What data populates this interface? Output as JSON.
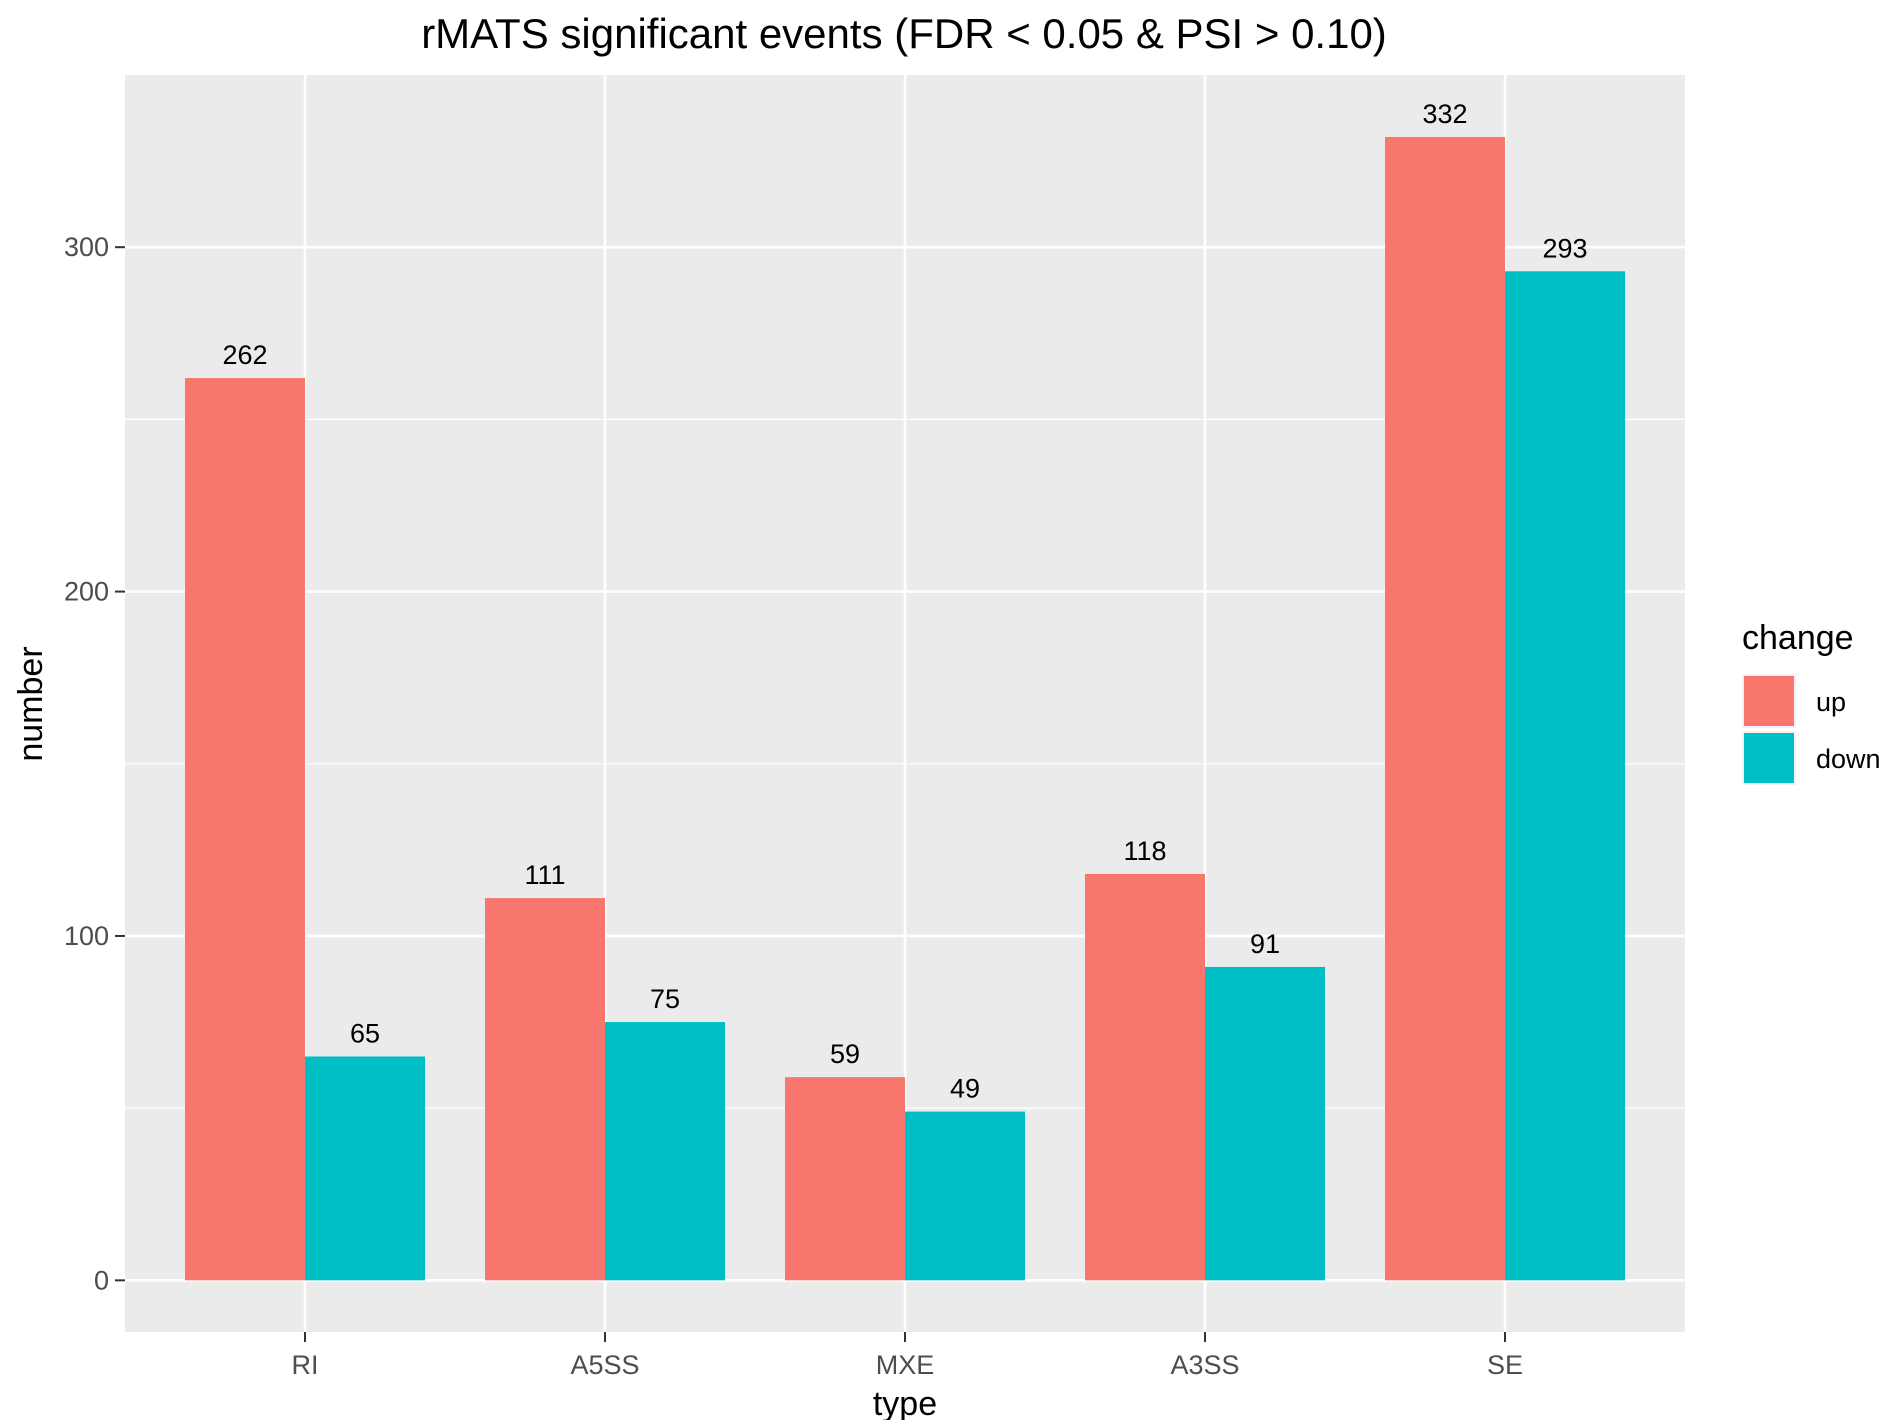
{
  "chart_data": {
    "type": "bar",
    "title": "rMATS significant events (FDR < 0.05 & PSI > 0.10)",
    "xlabel": "type",
    "ylabel": "number",
    "categories": [
      "RI",
      "A5SS",
      "MXE",
      "A3SS",
      "SE"
    ],
    "series": [
      {
        "name": "up",
        "color": "#F8766D",
        "values": [
          262,
          111,
          59,
          118,
          332
        ]
      },
      {
        "name": "down",
        "color": "#00BFC4",
        "values": [
          65,
          75,
          49,
          91,
          293
        ]
      }
    ],
    "ylim": [
      -15,
      350
    ],
    "yticks": [
      0,
      100,
      200,
      300
    ],
    "grid": true,
    "panel_background": "#EBEBEB",
    "legend": {
      "title": "change",
      "placement": "right",
      "entries": [
        "up",
        "down"
      ]
    },
    "data_labels": true
  }
}
